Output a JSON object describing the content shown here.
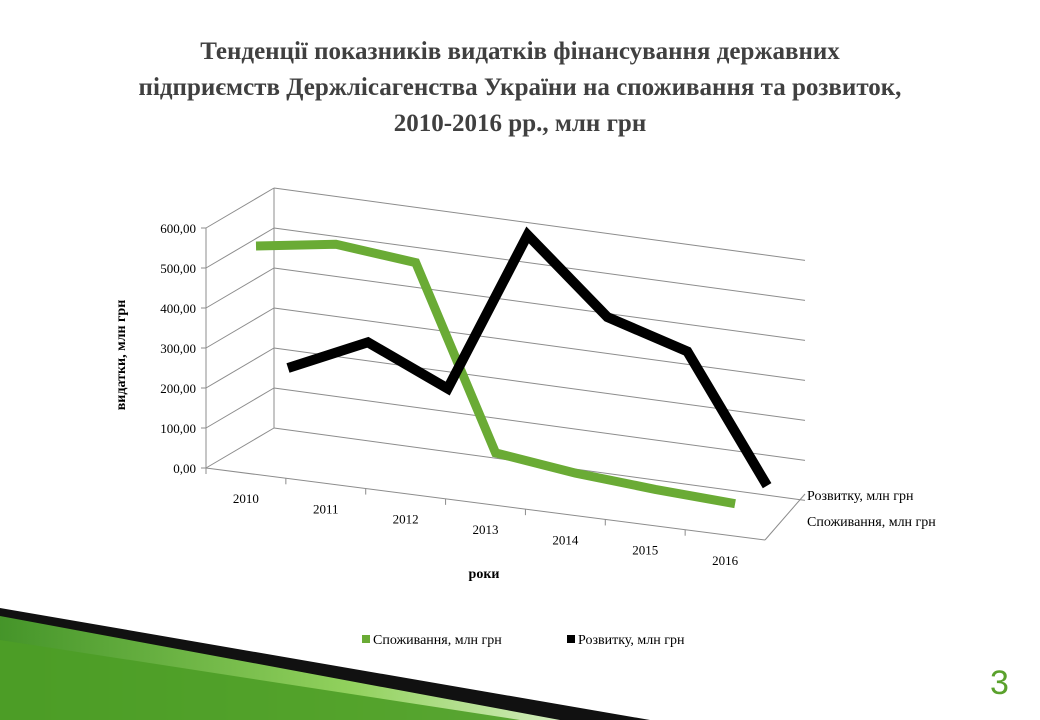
{
  "slide": {
    "title_lines": [
      "Тенденції показників видатків фінансування державних",
      "підприємств Держлісагенства  України на споживання та розвиток,",
      "2010-2016 рр., млн грн"
    ],
    "page_number": "3"
  },
  "chart_data": {
    "type": "line",
    "style": "3d-line",
    "categories": [
      "2010",
      "2011",
      "2012",
      "2013",
      "2014",
      "2015",
      "2016"
    ],
    "series": [
      {
        "name": "Споживання, млн грн",
        "color": "#6aab35",
        "values": [
          500,
          530,
          510,
          60,
          35,
          20,
          10
        ]
      },
      {
        "name": "Розвитку, млн грн",
        "color": "#000000",
        "values": [
          150,
          240,
          150,
          560,
          380,
          320,
          10
        ]
      }
    ],
    "xlabel": "роки",
    "ylabel": "видатки, млн грн",
    "yticks": [
      "0,00",
      "100,00",
      "200,00",
      "300,00",
      "400,00",
      "500,00",
      "600,00"
    ],
    "ylim": [
      0,
      600
    ],
    "depth_labels": [
      "Розвитку, млн грн",
      "Споживання, млн грн"
    ],
    "legend_position": "bottom",
    "grid": true
  },
  "colors": {
    "accent_green": "#6aab35",
    "page_number": "#5aa12c"
  }
}
